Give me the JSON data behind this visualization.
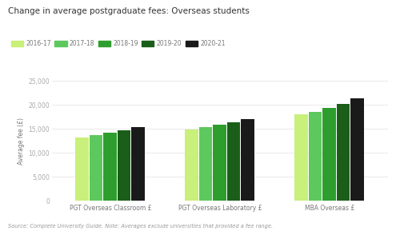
{
  "title": "Change in average postgraduate fees: Overseas students",
  "ylabel": "Average fee (£)",
  "source_text": "Source: Complete University Guide. Note: Averages exclude universities that provided a fee range.",
  "categories": [
    "PGT Overseas Classroom £",
    "PGT Overseas Laboratory £",
    "MBA Overseas £"
  ],
  "years": [
    "2016-17",
    "2017-18",
    "2018-19",
    "2019-20",
    "2020-21"
  ],
  "colors": [
    "#c8f07a",
    "#5dc85d",
    "#2d9e2d",
    "#1a5e1a",
    "#1a1a1a"
  ],
  "values": [
    [
      13200,
      13700,
      14200,
      14700,
      15300
    ],
    [
      14900,
      15300,
      15800,
      16300,
      17100
    ],
    [
      18000,
      18600,
      19300,
      20200,
      21300
    ]
  ],
  "ylim": [
    0,
    25000
  ],
  "yticks": [
    0,
    5000,
    10000,
    15000,
    20000,
    25000
  ],
  "bar_width": 0.06,
  "group_positions": [
    0.25,
    0.72,
    1.19
  ],
  "xlim": [
    0.0,
    1.44
  ]
}
